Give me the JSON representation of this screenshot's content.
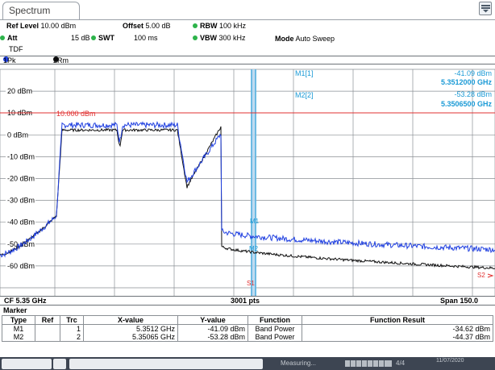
{
  "tab": {
    "label": "Spectrum"
  },
  "settings": {
    "ref_level_label": "Ref Level",
    "ref_level_value": "10.00 dBm",
    "offset_label": "Offset",
    "offset_value": "5.00 dB",
    "rbw_label": "RBW",
    "rbw_value": "100 kHz",
    "att_label": "Att",
    "att_value": "15 dB",
    "swt_label": "SWT",
    "swt_value": "100 ms",
    "vbw_label": "VBW",
    "vbw_value": "300 kHz",
    "mode_label": "Mode",
    "mode_value": "Auto Sweep",
    "tdf": "TDF"
  },
  "traces": {
    "t1": "1Pk Max",
    "t2": "2Rm AvgPwr",
    "t1_color": "#1f3fe0",
    "t2_color": "#111111"
  },
  "markers_readout": {
    "m1_label": "M1[1]",
    "m1_level": "-41.09 dBm",
    "m1_freq": "5.3512000 GHz",
    "m2_label": "M2[2]",
    "m2_level": "-53.28 dBm",
    "m2_freq": "5.3506500 GHz",
    "color": "#1a9ad6"
  },
  "plot": {
    "y_labels": [
      "20 dBm",
      "10 dBm",
      "0 dBm",
      "-10 dBm",
      "-20 dBm",
      "-30 dBm",
      "-40 dBm",
      "-50 dBm",
      "-60 dBm"
    ],
    "ref_line_label": "10.000 dBm",
    "ref_line_color": "#e03030",
    "m1_tag": "M1",
    "m2_tag": "M2",
    "s1_tag": "S1",
    "s2_tag": "S2",
    "limit_color": "#e03030"
  },
  "status": {
    "cf": "CF 5.35 GHz",
    "pts": "3001 pts",
    "span": "Span 150.0 MHz"
  },
  "marker_table": {
    "title": "Marker",
    "headers": [
      "Type",
      "Ref",
      "Trc",
      "X-value",
      "Y-value",
      "Function",
      "Function Result"
    ],
    "rows": [
      {
        "type": "M1",
        "ref": "",
        "trc": "1",
        "x": "5.3512 GHz",
        "y": "-41.09 dBm",
        "func": "Band Power",
        "result": "-34.62 dBm"
      },
      {
        "type": "M2",
        "ref": "",
        "trc": "2",
        "x": "5.35065 GHz",
        "y": "-53.28 dBm",
        "func": "Band Power",
        "result": "-44.37 dBm"
      }
    ]
  },
  "taskbar": {
    "measuring": "Measuring...",
    "status": "4/4",
    "date": "11/07/2020"
  }
}
